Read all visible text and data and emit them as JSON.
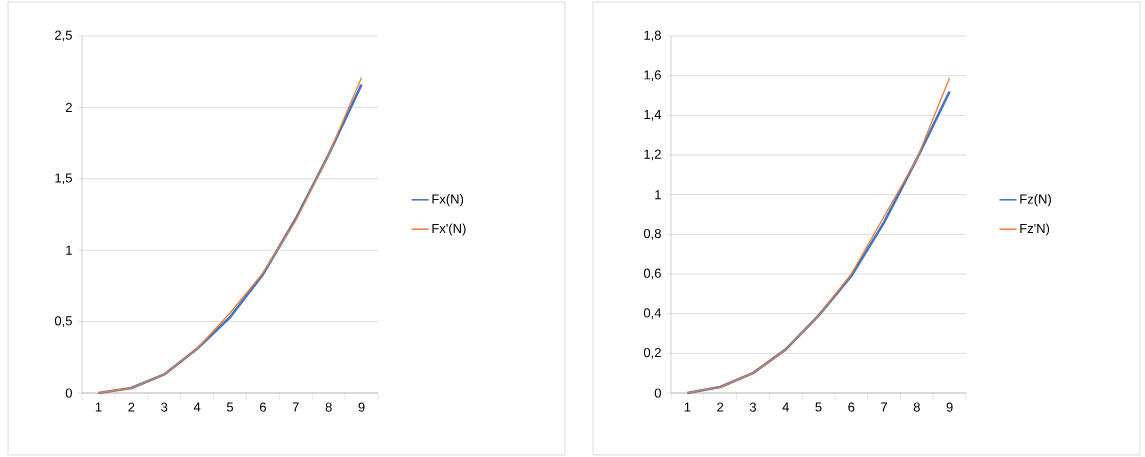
{
  "chart_data": [
    {
      "type": "line",
      "categories": [
        "1",
        "2",
        "3",
        "4",
        "5",
        "6",
        "7",
        "8",
        "9"
      ],
      "series": [
        {
          "name": "Fx(N)",
          "color": "#4472c4",
          "values": [
            0,
            0.035,
            0.13,
            0.31,
            0.53,
            0.83,
            1.22,
            1.67,
            2.16
          ]
        },
        {
          "name": "Fx'(N)",
          "color": "#ed7d31",
          "values": [
            0,
            0.035,
            0.13,
            0.31,
            0.56,
            0.84,
            1.21,
            1.67,
            2.21
          ]
        }
      ],
      "ylim": [
        0,
        2.5
      ],
      "yticks": [
        0,
        {
          "value": 0.5,
          "label": "0,5"
        },
        1,
        {
          "value": 1.5,
          "label": "1,5"
        },
        2,
        {
          "value": 2.5,
          "label": "2,5"
        }
      ],
      "grid": "y",
      "legend": "right"
    },
    {
      "type": "line",
      "categories": [
        "1",
        "2",
        "3",
        "4",
        "5",
        "6",
        "7",
        "8",
        "9"
      ],
      "series": [
        {
          "name": "Fz(N)",
          "color": "#4472c4",
          "values": [
            0,
            0.03,
            0.1,
            0.22,
            0.39,
            0.59,
            0.86,
            1.18,
            1.52
          ]
        },
        {
          "name": "Fz'N)",
          "color": "#ed7d31",
          "values": [
            0,
            0.03,
            0.1,
            0.22,
            0.39,
            0.6,
            0.89,
            1.18,
            1.59
          ]
        }
      ],
      "ylim": [
        0,
        1.8
      ],
      "yticks": [
        0,
        {
          "value": 0.2,
          "label": "0,2"
        },
        {
          "value": 0.4,
          "label": "0,4"
        },
        {
          "value": 0.6,
          "label": "0,6"
        },
        {
          "value": 0.8,
          "label": "0,8"
        },
        1,
        {
          "value": 1.2,
          "label": "1,2"
        },
        {
          "value": 1.4,
          "label": "1,4"
        },
        {
          "value": 1.6,
          "label": "1,6"
        },
        {
          "value": 1.8,
          "label": "1,8"
        }
      ],
      "grid": "y",
      "legend": "right"
    }
  ]
}
